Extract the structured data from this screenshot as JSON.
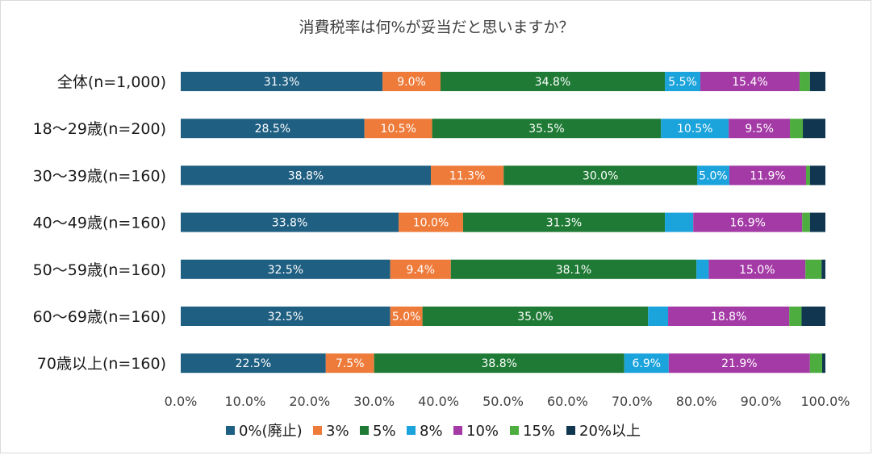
{
  "chart_data": {
    "type": "bar",
    "orientation": "horizontal",
    "stacked": true,
    "title": "消費税率は何%が妥当だと思いますか？",
    "categories": [
      "全体(n=1,000)",
      "18〜29歳(n=200)",
      "30〜39歳(n=160)",
      "40〜49歳(n=160)",
      "50〜59歳(n=160)",
      "60〜69歳(n=160)",
      "70歳以上(n=160)"
    ],
    "series": [
      {
        "name": "0%(廃止)",
        "color": "#1f5f82",
        "values": [
          31.3,
          28.5,
          38.8,
          33.8,
          32.5,
          32.5,
          22.5
        ],
        "labels": [
          "31.3%",
          "28.5%",
          "38.8%",
          "33.8%",
          "32.5%",
          "32.5%",
          "22.5%"
        ]
      },
      {
        "name": "3%",
        "color": "#ee7b3a",
        "values": [
          9.0,
          10.5,
          11.3,
          10.0,
          9.4,
          5.0,
          7.5
        ],
        "labels": [
          "9.0%",
          "10.5%",
          "11.3%",
          "10.0%",
          "9.4%",
          "5.0%",
          "7.5%"
        ]
      },
      {
        "name": "5%",
        "color": "#1e7a34",
        "values": [
          34.8,
          35.5,
          30.0,
          31.3,
          38.1,
          35.0,
          38.8
        ],
        "labels": [
          "34.8%",
          "35.5%",
          "30.0%",
          "31.3%",
          "38.1%",
          "35.0%",
          "38.8%"
        ]
      },
      {
        "name": "8%",
        "color": "#1ba3dc",
        "values": [
          5.5,
          10.5,
          5.0,
          4.4,
          1.9,
          3.1,
          6.9
        ],
        "labels": [
          "5.5%",
          "10.5%",
          "5.0%",
          "",
          "",
          "",
          "6.9%"
        ]
      },
      {
        "name": "10%",
        "color": "#a43aa6",
        "values": [
          15.4,
          9.5,
          11.9,
          16.9,
          15.0,
          18.8,
          21.9
        ],
        "labels": [
          "15.4%",
          "9.5%",
          "11.9%",
          "16.9%",
          "15.0%",
          "18.8%",
          "21.9%"
        ]
      },
      {
        "name": "15%",
        "color": "#4dae3f",
        "values": [
          1.6,
          2.0,
          0.6,
          1.2,
          2.5,
          1.9,
          1.9
        ],
        "labels": [
          "",
          "",
          "",
          "",
          "",
          "",
          ""
        ]
      },
      {
        "name": "20%以上",
        "color": "#10374f",
        "values": [
          2.4,
          3.5,
          2.4,
          2.4,
          0.6,
          3.7,
          0.5
        ],
        "labels": [
          "",
          "",
          "",
          "",
          "",
          "",
          ""
        ]
      }
    ],
    "x_ticks": [
      "0.0%",
      "10.0%",
      "20.0%",
      "30.0%",
      "40.0%",
      "50.0%",
      "60.0%",
      "70.0%",
      "80.0%",
      "90.0%",
      "100.0%"
    ],
    "xlim": [
      0,
      100
    ],
    "grid": false,
    "legend_position": "bottom"
  }
}
